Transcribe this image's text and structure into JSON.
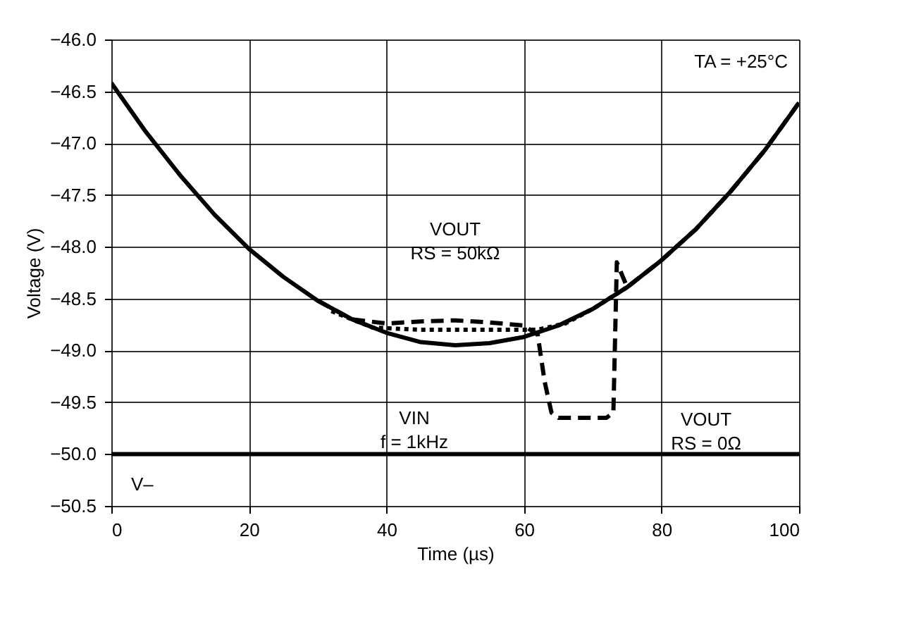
{
  "chart_data": {
    "type": "line",
    "xlabel": "Time (µs)",
    "ylabel": "Voltage (V)",
    "xlim": [
      0,
      100
    ],
    "xticks": [
      0,
      20,
      40,
      60,
      80,
      100
    ],
    "ylim": [
      -50.5,
      -46.0
    ],
    "yticks": [
      {
        "value": -50.5,
        "label": "−50.5"
      },
      {
        "value": -50.0,
        "label": "−50.0"
      },
      {
        "value": -49.5,
        "label": "−49.5"
      },
      {
        "value": -49.0,
        "label": "−49.0"
      },
      {
        "value": -48.5,
        "label": "−48.5"
      },
      {
        "value": -48.0,
        "label": "−48.0"
      },
      {
        "value": -47.5,
        "label": "−47.5"
      },
      {
        "value": -47.0,
        "label": "−47.0"
      },
      {
        "value": -46.5,
        "label": "−46.5"
      },
      {
        "value": -46.0,
        "label": "−46.0"
      }
    ],
    "grid": true,
    "marker": "none",
    "series": [
      {
        "color": "#000000",
        "line_style": "solid",
        "x": [
          0,
          5,
          10,
          15,
          20,
          25,
          30,
          35,
          40,
          45,
          50,
          55,
          60,
          65,
          70,
          75,
          80,
          85,
          90,
          95,
          100
        ],
        "values": [
          -46.42,
          -46.89,
          -47.31,
          -47.69,
          -48.02,
          -48.29,
          -48.52,
          -48.7,
          -48.83,
          -48.92,
          -48.95,
          -48.93,
          -48.87,
          -48.76,
          -48.6,
          -48.39,
          -48.13,
          -47.83,
          -47.47,
          -47.07,
          -46.61
        ]
      },
      {
        "color": "#000000",
        "line_style": "dotted",
        "x": [
          32,
          35,
          38,
          45,
          50,
          55,
          62,
          66,
          70,
          75
        ],
        "values": [
          -48.62,
          -48.7,
          -48.78,
          -48.8,
          -48.8,
          -48.8,
          -48.8,
          -48.74,
          -48.6,
          -48.39
        ]
      },
      {
        "color": "#000000",
        "line_style": "dashed",
        "x": [
          30,
          35,
          40,
          45,
          50,
          55,
          60,
          62,
          63,
          64,
          65,
          72,
          73,
          73.5,
          75,
          80,
          85,
          90,
          95,
          100
        ],
        "values": [
          -48.52,
          -48.7,
          -48.74,
          -48.72,
          -48.71,
          -48.73,
          -48.76,
          -48.85,
          -49.3,
          -49.6,
          -49.65,
          -49.65,
          -49.6,
          -48.15,
          -48.39,
          -48.13,
          -47.83,
          -47.47,
          -47.07,
          -46.61
        ]
      }
    ],
    "ref_lines": [
      {
        "axis": "y",
        "value": -50.0,
        "label": "V–",
        "color": "#000000"
      }
    ],
    "annotations": [
      "TA = +25°C",
      "VOUT\nRS = 50kΩ",
      "VIN\nf = 1kHz",
      "VOUT\nRS = 0Ω"
    ]
  }
}
